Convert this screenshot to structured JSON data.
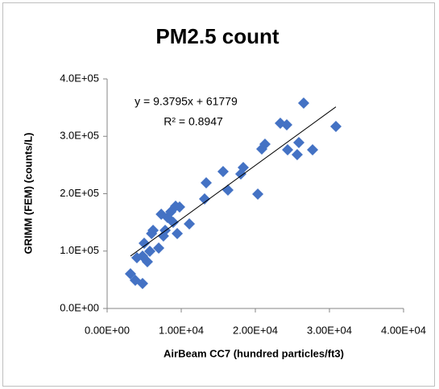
{
  "chart_data": {
    "type": "scatter",
    "title": "PM2.5 count",
    "x_label": "AirBeam CC7 (hundred particles/ft3)",
    "y_label": "GRIMM (FEM) (counts/L)",
    "equation": "y = 9.3795x + 61779",
    "r_squared": "R² = 0.8947",
    "trendline": {
      "slope": 9.3795,
      "intercept": 61779
    },
    "color": "#4472c4",
    "grid": false,
    "x": [
      3150,
      3800,
      4780,
      4020,
      4780,
      5000,
      5430,
      5760,
      6000,
      6200,
      6960,
      7300,
      7600,
      7830,
      8150,
      8590,
      8910,
      9240,
      9460,
      9780,
      11090,
      13150,
      13370,
      15650,
      16300,
      18040,
      18370,
      20330,
      20870,
      21300,
      23370,
      24240,
      24350,
      25650,
      25870,
      26520,
      27720,
      30870
    ],
    "values": [
      60350,
      49100,
      43500,
      88400,
      91200,
      113700,
      81400,
      99600,
      130500,
      136100,
      105300,
      164200,
      126300,
      136100,
      158600,
      168400,
      150200,
      178200,
      130500,
      176800,
      147400,
      190900,
      218900,
      238600,
      206300,
      234400,
      245600,
      199300,
      277900,
      286300,
      322800,
      320000,
      276500,
      268100,
      289100,
      357900,
      276500,
      317200
    ],
    "xlim": [
      0,
      40000
    ],
    "ylim": [
      0,
      400000
    ],
    "xticks": [
      {
        "value": 0,
        "label": "0.00E+00"
      },
      {
        "value": 10000,
        "label": "1.00E+04"
      },
      {
        "value": 20000,
        "label": "2.00E+04"
      },
      {
        "value": 30000,
        "label": "3.00E+04"
      },
      {
        "value": 40000,
        "label": "4.00E+04"
      }
    ],
    "yticks": [
      {
        "value": 0,
        "label": "0.0E+00"
      },
      {
        "value": 100000,
        "label": "1.0E+05"
      },
      {
        "value": 200000,
        "label": "2.0E+05"
      },
      {
        "value": 300000,
        "label": "3.0E+05"
      },
      {
        "value": 400000,
        "label": "4.0E+05"
      }
    ]
  }
}
